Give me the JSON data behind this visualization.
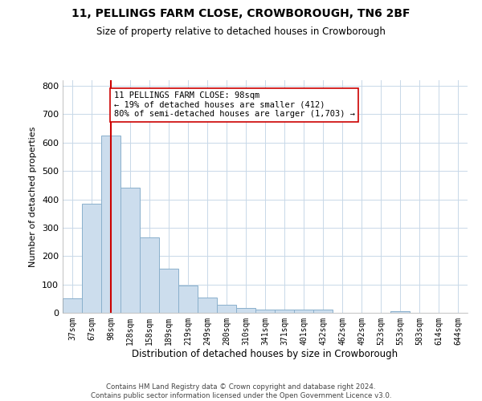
{
  "title_line1": "11, PELLINGS FARM CLOSE, CROWBOROUGH, TN6 2BF",
  "title_line2": "Size of property relative to detached houses in Crowborough",
  "xlabel": "Distribution of detached houses by size in Crowborough",
  "ylabel": "Number of detached properties",
  "categories": [
    "37sqm",
    "67sqm",
    "98sqm",
    "128sqm",
    "158sqm",
    "189sqm",
    "219sqm",
    "249sqm",
    "280sqm",
    "310sqm",
    "341sqm",
    "371sqm",
    "401sqm",
    "432sqm",
    "462sqm",
    "492sqm",
    "523sqm",
    "553sqm",
    "583sqm",
    "614sqm",
    "644sqm"
  ],
  "values": [
    50,
    385,
    625,
    440,
    265,
    155,
    97,
    55,
    28,
    18,
    10,
    12,
    12,
    10,
    0,
    0,
    0,
    7,
    0,
    0,
    0
  ],
  "bar_color": "#ccdded",
  "bar_edge_color": "#8ab0cc",
  "bar_linewidth": 0.7,
  "highlight_bar_index": 2,
  "highlight_line_color": "#cc0000",
  "grid_color": "#c8d8e8",
  "background_color": "#ffffff",
  "annotation_text": "11 PELLINGS FARM CLOSE: 98sqm\n← 19% of detached houses are smaller (412)\n80% of semi-detached houses are larger (1,703) →",
  "annotation_box_color": "#ffffff",
  "annotation_box_edge_color": "#cc0000",
  "footer_text": "Contains HM Land Registry data © Crown copyright and database right 2024.\nContains public sector information licensed under the Open Government Licence v3.0.",
  "ylim": [
    0,
    820
  ],
  "yticks": [
    0,
    100,
    200,
    300,
    400,
    500,
    600,
    700,
    800
  ]
}
